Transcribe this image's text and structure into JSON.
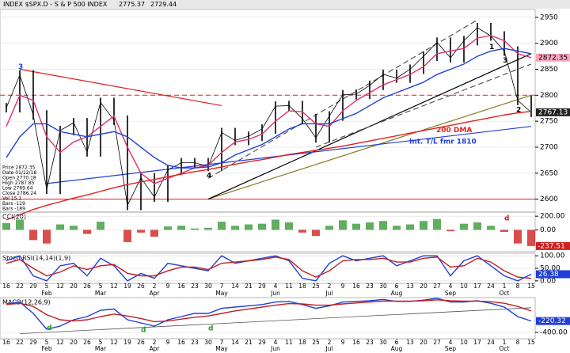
{
  "chart_data": {
    "type": "stock-panels",
    "title": "INDEX $SPX.D - S & P 500 INDEX",
    "header_values": [
      "2775.37",
      "2729.44"
    ],
    "info": [
      "Price 2872.35",
      "Date 01/12/18",
      "Open 2770.18",
      "High 2787.85",
      "Low 2769.64",
      "Close 2786.24",
      "Vol 15.1",
      "Bars -129",
      "Bars -189"
    ],
    "categories": [
      "16",
      "22",
      "29",
      "5",
      "12",
      "20",
      "26",
      "5",
      "12",
      "19",
      "26",
      "2",
      "9",
      "16",
      "23",
      "30",
      "7",
      "14",
      "21",
      "29",
      "4",
      "11",
      "18",
      "25",
      "2",
      "9",
      "16",
      "23",
      "30",
      "6",
      "13",
      "20",
      "27",
      "4",
      "10",
      "17",
      "24",
      "1",
      "8",
      "15"
    ],
    "month_labels": [
      null,
      null,
      null,
      "Feb",
      null,
      null,
      null,
      "Mar",
      null,
      null,
      null,
      "Apr",
      null,
      null,
      null,
      null,
      "May",
      null,
      null,
      null,
      "Jun",
      null,
      null,
      null,
      "Jul",
      null,
      null,
      null,
      null,
      "Aug",
      null,
      null,
      null,
      "Sep",
      null,
      null,
      null,
      "Oct",
      null,
      null
    ],
    "price": {
      "ylim": [
        2575,
        2965
      ],
      "yticks": [
        2950,
        2900,
        2850,
        2800,
        2750,
        2700,
        2650,
        2600
      ],
      "series": [
        {
          "color": "#000000",
          "values": [
            2776,
            2839,
            2762,
            2619,
            2732,
            2747,
            2691,
            2786,
            2752,
            2588,
            2641,
            2604,
            2656,
            2670,
            2670,
            2663,
            2728,
            2713,
            2721,
            2735,
            2779,
            2780,
            2755,
            2718,
            2760,
            2801,
            2802,
            2819,
            2840,
            2833,
            2850,
            2875,
            2902,
            2872,
            2905,
            2930,
            2914,
            2885,
            2790,
            2767.13
          ]
        },
        {
          "color": "#e0306a",
          "values": [
            2740,
            2800,
            2790,
            2720,
            2690,
            2710,
            2720,
            2740,
            2760,
            2700,
            2650,
            2630,
            2640,
            2650,
            2660,
            2665,
            2690,
            2710,
            2715,
            2725,
            2750,
            2770,
            2768,
            2745,
            2740,
            2770,
            2790,
            2805,
            2820,
            2830,
            2840,
            2855,
            2880,
            2885,
            2890,
            2910,
            2915,
            2905,
            2880,
            2872.35
          ]
        },
        {
          "color": "#1f3fd6",
          "values": [
            2680,
            2720,
            2745,
            2745,
            2730,
            2725,
            2720,
            2725,
            2730,
            2720,
            2700,
            2680,
            2665,
            2660,
            2660,
            2662,
            2670,
            2685,
            2695,
            2705,
            2720,
            2735,
            2745,
            2745,
            2745,
            2755,
            2765,
            2780,
            2795,
            2805,
            2815,
            2825,
            2840,
            2850,
            2860,
            2875,
            2885,
            2890,
            2885,
            2880
          ]
        },
        {
          "name": "200 DMA",
          "color": "#e02020",
          "values": [
            2560,
            2570,
            2580,
            2588,
            2595,
            2602,
            2608,
            2615,
            2622,
            2628,
            2633,
            2638,
            2643,
            2648,
            2653,
            2657,
            2662,
            2667,
            2672,
            2676,
            2681,
            2686,
            2690,
            2694,
            2698,
            2702,
            2707,
            2712,
            2717,
            2722,
            2727,
            2732,
            2737,
            2742,
            2747,
            2752,
            2757,
            2762,
            2766,
            2769
          ]
        }
      ],
      "levels": [
        {
          "value": 2800,
          "color": "#e02020",
          "dash": true
        },
        {
          "value": 2600,
          "color": "#e02020",
          "dash": false
        }
      ],
      "value_labels": [
        {
          "value": 2872.35,
          "color": "#f7a8c0"
        },
        {
          "value": 2767.13,
          "color": "#222222"
        }
      ],
      "annotations": [
        {
          "text": "3",
          "index": 1,
          "color": "#1f3fd6"
        },
        {
          "text": "4",
          "index": 15,
          "color": "#000000"
        },
        {
          "text": "3",
          "index": 37,
          "color": "#000000"
        },
        {
          "text": "2",
          "index": 38,
          "color": "#000000"
        },
        {
          "text": "1",
          "index": 36,
          "color": "#000000"
        },
        {
          "text": "200 DMA",
          "index": 33,
          "color": "#e02020"
        },
        {
          "text": "Int. T/L fmr 1810",
          "index": 31,
          "color": "#1f3fd6"
        }
      ]
    },
    "cci": {
      "title": "CCI(20)",
      "ylim": [
        -320,
        260
      ],
      "yticks": [
        {
          "value": 200,
          "label": "200.00"
        },
        {
          "value": 0,
          "label": "0.00"
        }
      ],
      "values": [
        100,
        150,
        -150,
        -200,
        80,
        60,
        -60,
        120,
        0,
        -180,
        -40,
        -100,
        50,
        60,
        20,
        30,
        120,
        60,
        80,
        90,
        150,
        110,
        -40,
        -90,
        60,
        140,
        90,
        110,
        130,
        60,
        80,
        130,
        160,
        -20,
        90,
        110,
        60,
        -30,
        -200,
        -237.51
      ],
      "annotation": "d"
    },
    "stoch": {
      "title": "Stoch RSI(14,14)(1,9)",
      "ylim": [
        -10,
        110
      ],
      "yticks": [
        {
          "value": 100,
          "label": "100.00"
        },
        {
          "value": 50,
          "label": "50.00"
        },
        {
          "value": 0,
          "label": "0.00"
        }
      ],
      "series": [
        {
          "color": "#1f3fd6",
          "values": [
            80,
            100,
            20,
            0,
            60,
            70,
            20,
            90,
            60,
            0,
            30,
            10,
            70,
            60,
            50,
            40,
            100,
            70,
            80,
            90,
            100,
            80,
            10,
            0,
            70,
            100,
            80,
            90,
            100,
            60,
            80,
            100,
            100,
            20,
            80,
            100,
            60,
            20,
            0,
            26.38
          ]
        },
        {
          "color": "#c02020",
          "values": [
            70,
            85,
            50,
            20,
            35,
            60,
            45,
            60,
            65,
            30,
            20,
            20,
            40,
            55,
            55,
            45,
            70,
            75,
            80,
            85,
            95,
            85,
            40,
            15,
            40,
            80,
            85,
            85,
            90,
            75,
            75,
            90,
            95,
            55,
            60,
            90,
            75,
            40,
            15,
            10
          ]
        }
      ]
    },
    "macd": {
      "title": "MACD(12,26,9)",
      "ylim": [
        -500,
        150
      ],
      "yticks": [
        {
          "value": -400,
          "label": "-400.00"
        }
      ],
      "series": [
        {
          "color": "#1f3fd6",
          "values": [
            50,
            80,
            -100,
            -350,
            -300,
            -200,
            -150,
            -50,
            -30,
            -200,
            -250,
            -300,
            -200,
            -150,
            -100,
            -100,
            -20,
            0,
            20,
            40,
            80,
            90,
            40,
            -20,
            20,
            80,
            90,
            100,
            120,
            90,
            90,
            110,
            140,
            80,
            80,
            100,
            60,
            0,
            -150,
            -220.32
          ]
        },
        {
          "color": "#c02020",
          "values": [
            40,
            60,
            10,
            -120,
            -200,
            -220,
            -200,
            -150,
            -110,
            -140,
            -180,
            -230,
            -220,
            -190,
            -160,
            -140,
            -100,
            -60,
            -30,
            0,
            30,
            55,
            50,
            30,
            30,
            50,
            65,
            80,
            95,
            95,
            95,
            100,
            115,
            100,
            95,
            95,
            85,
            60,
            10,
            -60
          ]
        }
      ],
      "annotations": [
        "d",
        "d",
        "d"
      ]
    }
  }
}
